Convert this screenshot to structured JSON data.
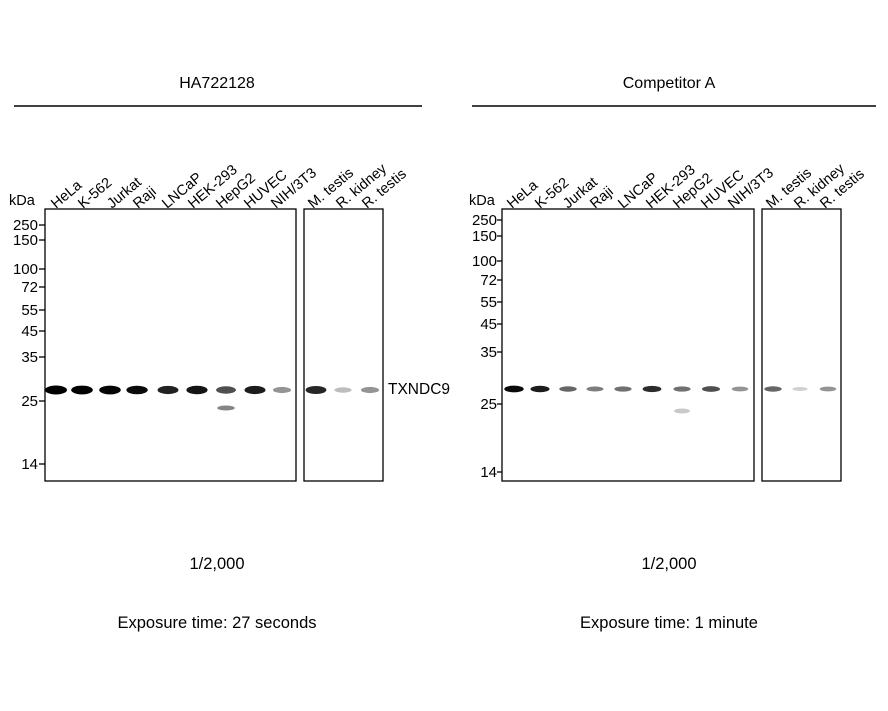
{
  "panels": [
    {
      "id": "left",
      "title": "HA722128",
      "dilution": "1/2,000",
      "exposure": "Exposure time: 27 seconds",
      "kda_label": "kDa",
      "mw_markers": [
        "250",
        "150",
        "100",
        "72",
        "55",
        "45",
        "35",
        "25",
        "14"
      ],
      "target_label": "TXNDC9",
      "lanes": [
        "HeLa",
        "K-562",
        "Jurkat",
        "Raji",
        "LNCaP",
        "HEK-293",
        "HepG2",
        "HUVEC",
        "NIH/3T3",
        "M. testis",
        "R. kidney",
        "R. testis"
      ],
      "band_intensity": [
        1.0,
        0.95,
        0.92,
        0.9,
        0.8,
        0.85,
        0.6,
        0.82,
        0.3,
        0.78,
        0.12,
        0.3
      ],
      "secondary_band_intensity": [
        0,
        0,
        0,
        0,
        0,
        0,
        0.55,
        0,
        0,
        0,
        0,
        0
      ]
    },
    {
      "id": "right",
      "title": "Competitor A",
      "dilution": "1/2,000",
      "exposure": "Exposure time: 1 minute",
      "kda_label": "kDa",
      "mw_markers": [
        "250",
        "150",
        "100",
        "72",
        "55",
        "45",
        "35",
        "25",
        "14"
      ],
      "target_label": "",
      "lanes": [
        "HeLa",
        "K-562",
        "Jurkat",
        "Raji",
        "LNCaP",
        "HEK-293",
        "HepG2",
        "HUVEC",
        "NIH/3T3",
        "M. testis",
        "R. kidney",
        "R. testis"
      ],
      "band_intensity": [
        0.9,
        0.82,
        0.5,
        0.4,
        0.45,
        0.75,
        0.45,
        0.6,
        0.3,
        0.5,
        0.03,
        0.3
      ],
      "secondary_band_intensity": [
        0,
        0,
        0,
        0,
        0,
        0,
        0.15,
        0,
        0,
        0,
        0,
        0
      ]
    }
  ]
}
